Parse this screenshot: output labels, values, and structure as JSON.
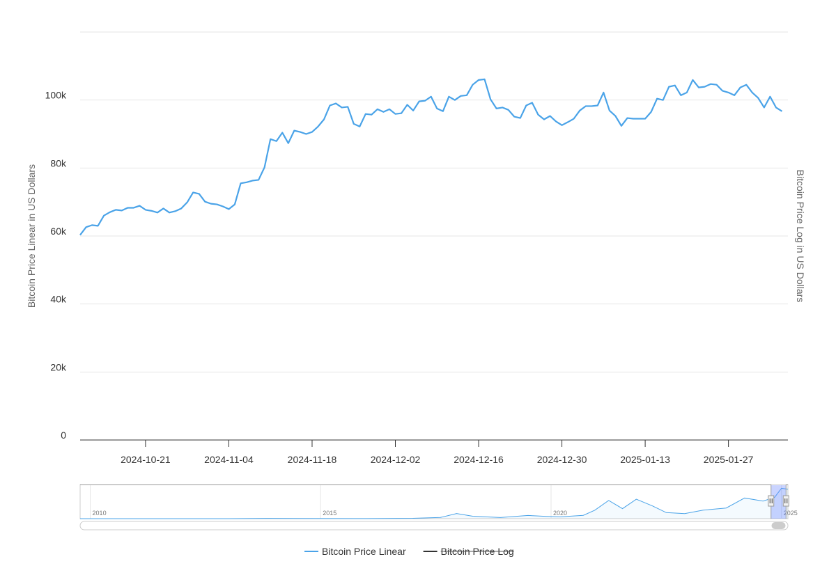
{
  "chart_data": {
    "type": "line",
    "y_axis_label": "Bitcoin Price Linear in US Dollars",
    "y2_axis_label": "Bitcoin Price Log in US Dollars",
    "x": [
      "2024-10-10",
      "2024-10-11",
      "2024-10-12",
      "2024-10-13",
      "2024-10-14",
      "2024-10-15",
      "2024-10-16",
      "2024-10-17",
      "2024-10-18",
      "2024-10-19",
      "2024-10-20",
      "2024-10-21",
      "2024-10-22",
      "2024-10-23",
      "2024-10-24",
      "2024-10-25",
      "2024-10-26",
      "2024-10-27",
      "2024-10-28",
      "2024-10-29",
      "2024-10-30",
      "2024-10-31",
      "2024-11-01",
      "2024-11-02",
      "2024-11-03",
      "2024-11-04",
      "2024-11-05",
      "2024-11-06",
      "2024-11-07",
      "2024-11-08",
      "2024-11-09",
      "2024-11-10",
      "2024-11-11",
      "2024-11-12",
      "2024-11-13",
      "2024-11-14",
      "2024-11-15",
      "2024-11-16",
      "2024-11-17",
      "2024-11-18",
      "2024-11-19",
      "2024-11-20",
      "2024-11-21",
      "2024-11-22",
      "2024-11-23",
      "2024-11-24",
      "2024-11-25",
      "2024-11-26",
      "2024-11-27",
      "2024-11-28",
      "2024-11-29",
      "2024-11-30",
      "2024-12-01",
      "2024-12-02",
      "2024-12-03",
      "2024-12-04",
      "2024-12-05",
      "2024-12-06",
      "2024-12-07",
      "2024-12-08",
      "2024-12-09",
      "2024-12-10",
      "2024-12-11",
      "2024-12-12",
      "2024-12-13",
      "2024-12-14",
      "2024-12-15",
      "2024-12-16",
      "2024-12-17",
      "2024-12-18",
      "2024-12-19",
      "2024-12-20",
      "2024-12-21",
      "2024-12-22",
      "2024-12-23",
      "2024-12-24",
      "2024-12-25",
      "2024-12-26",
      "2024-12-27",
      "2024-12-28",
      "2024-12-29",
      "2024-12-30",
      "2024-12-31",
      "2025-01-01",
      "2025-01-02",
      "2025-01-03",
      "2025-01-04",
      "2025-01-05",
      "2025-01-06",
      "2025-01-07",
      "2025-01-08",
      "2025-01-09",
      "2025-01-10",
      "2025-01-11",
      "2025-01-12",
      "2025-01-13",
      "2025-01-14",
      "2025-01-15",
      "2025-01-16",
      "2025-01-17",
      "2025-01-18",
      "2025-01-19",
      "2025-01-20",
      "2025-01-21",
      "2025-01-22",
      "2025-01-23",
      "2025-01-24",
      "2025-01-25",
      "2025-01-26",
      "2025-01-27",
      "2025-01-28",
      "2025-01-29",
      "2025-01-30",
      "2025-01-31",
      "2025-02-01",
      "2025-02-02",
      "2025-02-03",
      "2025-02-04",
      "2025-02-05"
    ],
    "series": [
      {
        "name": "Bitcoin Price Linear",
        "color": "#4aa3e8",
        "visible": true,
        "values": [
          60300,
          62600,
          63200,
          63000,
          66000,
          67000,
          67700,
          67500,
          68300,
          68300,
          68900,
          67700,
          67400,
          66900,
          68100,
          66900,
          67300,
          68100,
          69900,
          72800,
          72400,
          70100,
          69500,
          69300,
          68700,
          67900,
          69300,
          75500,
          75800,
          76300,
          76500,
          80200,
          88500,
          87900,
          90400,
          87300,
          91000,
          90600,
          90000,
          90600,
          92200,
          94300,
          98400,
          99000,
          97800,
          98000,
          93000,
          92200,
          95900,
          95700,
          97300,
          96500,
          97300,
          95900,
          96100,
          98600,
          96900,
          99600,
          99800,
          101000,
          97500,
          96700,
          101000,
          100000,
          101200,
          101400,
          104500,
          105900,
          106100,
          100200,
          97500,
          97800,
          97100,
          95100,
          94700,
          98400,
          99200,
          95700,
          94300,
          95300,
          93700,
          92600,
          93500,
          94500,
          96900,
          98200,
          98200,
          98400,
          102200,
          96900,
          95300,
          92400,
          94700,
          94500,
          94500,
          94500,
          96500,
          100400,
          100000,
          103900,
          104300,
          101400,
          102200,
          105900,
          103700,
          103900,
          104700,
          104500,
          102700,
          102200,
          101400,
          103700,
          104500,
          102200,
          100600,
          97800,
          101000,
          97800,
          96700
        ]
      },
      {
        "name": "Bitcoin Price Log",
        "color": "#333333",
        "visible": false
      }
    ],
    "xlim": [
      "2024-10-10",
      "2025-02-06"
    ],
    "xticks": [
      "2024-10-21",
      "2024-11-04",
      "2024-11-18",
      "2024-12-02",
      "2024-12-16",
      "2024-12-30",
      "2025-01-13",
      "2025-01-27"
    ],
    "ylim": [
      0,
      120000
    ],
    "yticks": [
      {
        "value": 0,
        "label": "0"
      },
      {
        "value": 20000,
        "label": "20k"
      },
      {
        "value": 40000,
        "label": "40k"
      },
      {
        "value": 60000,
        "label": "60k"
      },
      {
        "value": 80000,
        "label": "80k"
      },
      {
        "value": 100000,
        "label": "100k"
      }
    ],
    "grid": true,
    "navigator": {
      "xlim": [
        2009.78,
        2025.14
      ],
      "xticks": [
        2010,
        2015,
        2020,
        2025
      ],
      "ylim": [
        0,
        110000
      ],
      "x": [
        2009.78,
        2013.0,
        2013.9,
        2014.5,
        2016.0,
        2017.0,
        2017.6,
        2017.95,
        2018.3,
        2018.9,
        2019.5,
        2019.9,
        2020.2,
        2020.7,
        2020.95,
        2021.25,
        2021.55,
        2021.85,
        2022.2,
        2022.5,
        2022.9,
        2023.3,
        2023.8,
        2024.2,
        2024.6,
        2024.85,
        2025.0,
        2025.14
      ],
      "values": [
        100,
        100,
        900,
        500,
        400,
        1000,
        4000,
        17000,
        8000,
        3800,
        10500,
        7500,
        6000,
        11000,
        28000,
        60000,
        33000,
        64000,
        42000,
        20000,
        16500,
        28000,
        35000,
        68000,
        58000,
        70000,
        100000,
        97000
      ]
    }
  }
}
